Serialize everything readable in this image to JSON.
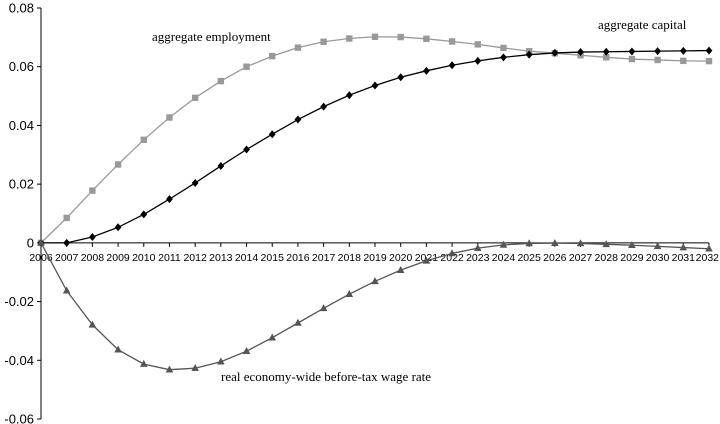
{
  "chart_data": {
    "type": "line",
    "title": "",
    "xlabel": "",
    "ylabel": "",
    "x": [
      "2006",
      "2007",
      "2008",
      "2009",
      "2010",
      "2011",
      "2012",
      "2013",
      "2014",
      "2015",
      "2016",
      "2017",
      "2018",
      "2019",
      "2020",
      "2021",
      "2022",
      "2023",
      "2024",
      "2025",
      "2026",
      "2027",
      "2028",
      "2029",
      "2030",
      "2031",
      "2032"
    ],
    "ylim": [
      -0.06,
      0.08
    ],
    "yticks": [
      -0.06,
      -0.04,
      -0.02,
      0,
      0.02,
      0.04,
      0.06,
      0.08
    ],
    "ytick_labels": [
      "-0.06",
      "-0.04",
      "-0.02",
      "0",
      "0.02",
      "0.04",
      "0.06",
      "0.08"
    ],
    "grid": false,
    "series": [
      {
        "name": "aggregate employment",
        "marker": "square",
        "color": "#999999",
        "values": [
          0,
          0.0085,
          0.0178,
          0.0267,
          0.0351,
          0.0427,
          0.0494,
          0.0551,
          0.06,
          0.0636,
          0.0665,
          0.0685,
          0.0696,
          0.0702,
          0.0701,
          0.0695,
          0.0686,
          0.0676,
          0.0664,
          0.0653,
          0.0646,
          0.0639,
          0.0632,
          0.0626,
          0.0623,
          0.062,
          0.0619
        ]
      },
      {
        "name": "aggregate capital",
        "marker": "diamond",
        "color": "#000000",
        "values": [
          0,
          0.0,
          0.002,
          0.0053,
          0.0097,
          0.0149,
          0.0204,
          0.0262,
          0.0318,
          0.037,
          0.042,
          0.0464,
          0.0503,
          0.0536,
          0.0564,
          0.0586,
          0.0605,
          0.062,
          0.0632,
          0.0641,
          0.0647,
          0.065,
          0.0651,
          0.0652,
          0.0653,
          0.0654,
          0.0655
        ]
      },
      {
        "name": "real economy-wide before-tax wage rate",
        "marker": "triangle",
        "color": "#555555",
        "values": [
          0,
          -0.0163,
          -0.0279,
          -0.0364,
          -0.0413,
          -0.0432,
          -0.0427,
          -0.0405,
          -0.0369,
          -0.0323,
          -0.0273,
          -0.0223,
          -0.0175,
          -0.0131,
          -0.0093,
          -0.0061,
          -0.0036,
          -0.0018,
          -0.0007,
          -0.0002,
          -0.0001,
          -0.0002,
          -0.0005,
          -0.0008,
          -0.0012,
          -0.0016,
          -0.002
        ]
      }
    ],
    "annotations": [
      {
        "series": 0,
        "text": "aggregate employment"
      },
      {
        "series": 1,
        "text": "aggregate capital"
      },
      {
        "series": 2,
        "text": "real economy-wide before-tax wage rate"
      }
    ]
  }
}
